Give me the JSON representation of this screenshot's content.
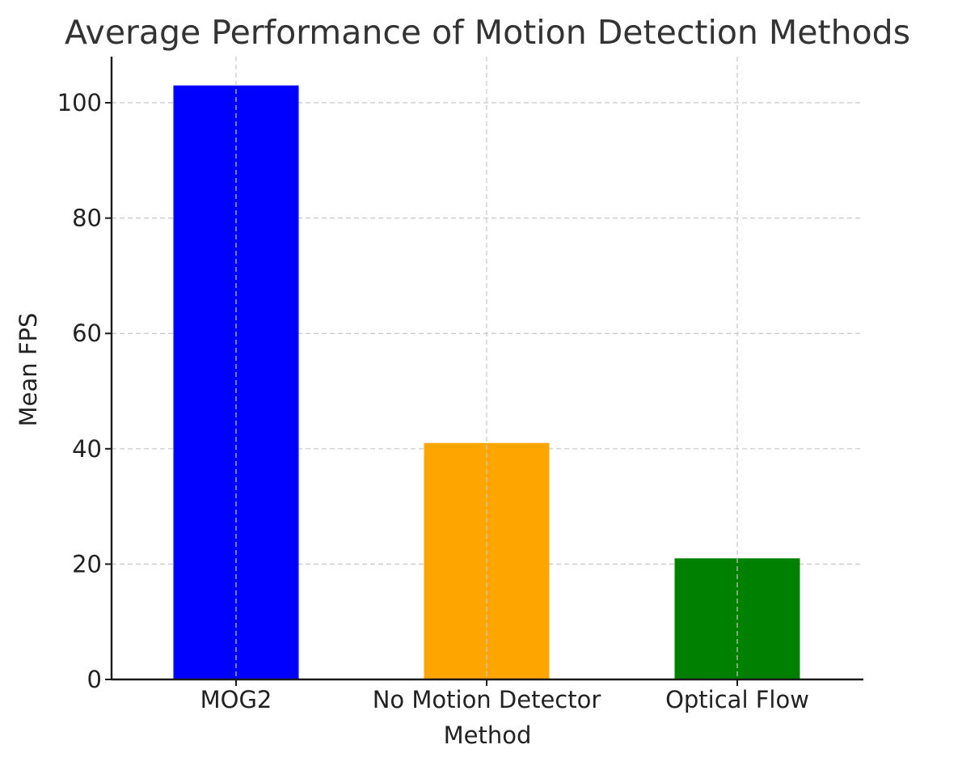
{
  "chart_data": {
    "type": "bar",
    "title": "Average Performance of Motion Detection Methods",
    "xlabel": "Method",
    "ylabel": "Mean FPS",
    "categories": [
      "MOG2",
      "No Motion Detector",
      "Optical Flow"
    ],
    "values": [
      103,
      41,
      21
    ],
    "colors": [
      "#0000ff",
      "#ffa500",
      "#008000"
    ],
    "ylim": [
      0,
      108
    ],
    "yticks": [
      0,
      20,
      40,
      60,
      80,
      100
    ],
    "grid": true,
    "grid_style": "dashed",
    "legend": "none"
  }
}
